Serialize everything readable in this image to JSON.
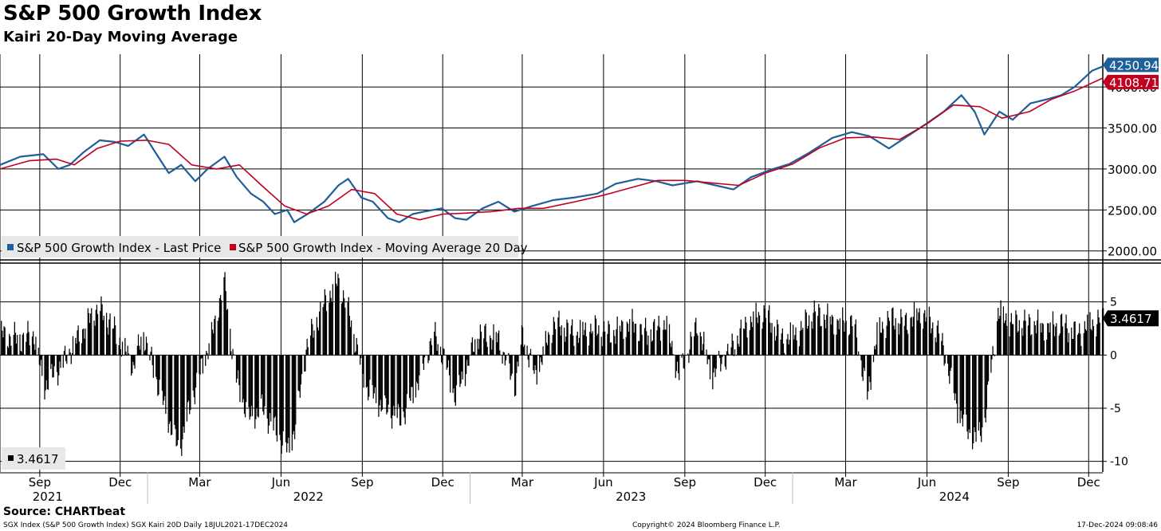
{
  "header": {
    "title": "S&P 500 Growth Index",
    "subtitle": "Kairi 20-Day Moving Average"
  },
  "footer": {
    "source": "Source: CHARTbeat",
    "left": "SGX Index (S&P 500 Growth Index) SGX Kairi 20D  Daily 18JUL2021-17DEC2024",
    "center": "Copyright© 2024 Bloomberg Finance L.P.",
    "right": "17-Dec-2024 09:08:46"
  },
  "colors": {
    "price": "#1f5f99",
    "moving_average": "#c0001f",
    "kairi_bars": "#000000",
    "grid": "#000000"
  },
  "chart_data": [
    {
      "type": "line",
      "panel": "price",
      "date_range": [
        "2021-07-18",
        "2024-12-17"
      ],
      "ylim": [
        1900,
        4400
      ],
      "yticks": [
        2000,
        2500,
        3000,
        3500,
        4000
      ],
      "ytick_labels": [
        "2000.00",
        "2500.00",
        "3000.00",
        "3500.00",
        "4000.00"
      ],
      "grid": true,
      "legend": {
        "placement": "bottom-left",
        "entries": [
          "S&P 500 Growth Index - Last Price",
          "S&P 500 Growth Index - Moving Average 20 Day"
        ]
      },
      "last_value_labels": [
        "4250.94",
        "4108.71"
      ],
      "series": [
        {
          "name": "S&P 500 Growth Index - Last Price",
          "color": "#1f5f99",
          "x": [
            "2021-07-18",
            "2021-08-10",
            "2021-09-05",
            "2021-09-22",
            "2021-10-05",
            "2021-10-20",
            "2021-11-08",
            "2021-11-25",
            "2021-12-10",
            "2021-12-28",
            "2022-01-10",
            "2022-01-25",
            "2022-02-08",
            "2022-02-24",
            "2022-03-10",
            "2022-03-29",
            "2022-04-12",
            "2022-04-28",
            "2022-05-12",
            "2022-05-25",
            "2022-06-08",
            "2022-06-16",
            "2022-07-01",
            "2022-07-20",
            "2022-08-05",
            "2022-08-16",
            "2022-08-31",
            "2022-09-13",
            "2022-09-30",
            "2022-10-13",
            "2022-10-28",
            "2022-11-10",
            "2022-11-30",
            "2022-12-15",
            "2022-12-28",
            "2023-01-15",
            "2023-02-02",
            "2023-02-20",
            "2023-03-13",
            "2023-04-05",
            "2023-04-28",
            "2023-05-25",
            "2023-06-15",
            "2023-07-10",
            "2023-07-31",
            "2023-08-18",
            "2023-09-15",
            "2023-10-26",
            "2023-11-15",
            "2023-12-10",
            "2023-12-28",
            "2024-01-20",
            "2024-02-15",
            "2024-03-08",
            "2024-03-28",
            "2024-04-19",
            "2024-05-10",
            "2024-05-31",
            "2024-06-20",
            "2024-07-10",
            "2024-07-25",
            "2024-08-05",
            "2024-08-22",
            "2024-09-06",
            "2024-09-26",
            "2024-10-15",
            "2024-10-31",
            "2024-11-15",
            "2024-12-05",
            "2024-12-17"
          ],
          "y": [
            3050,
            3150,
            3180,
            3000,
            3050,
            3200,
            3350,
            3330,
            3280,
            3420,
            3200,
            2950,
            3050,
            2850,
            3000,
            3150,
            2900,
            2700,
            2600,
            2450,
            2500,
            2350,
            2450,
            2600,
            2800,
            2880,
            2650,
            2600,
            2400,
            2350,
            2450,
            2480,
            2520,
            2400,
            2380,
            2520,
            2600,
            2480,
            2550,
            2620,
            2650,
            2700,
            2820,
            2880,
            2850,
            2800,
            2850,
            2750,
            2900,
            3000,
            3060,
            3200,
            3380,
            3450,
            3400,
            3250,
            3400,
            3550,
            3700,
            3900,
            3700,
            3420,
            3700,
            3600,
            3800,
            3850,
            3900,
            4000,
            4200,
            4251
          ]
        },
        {
          "name": "S&P 500 Growth Index - Moving Average 20 Day",
          "color": "#c0001f",
          "x": [
            "2021-07-18",
            "2021-08-20",
            "2021-09-20",
            "2021-10-10",
            "2021-11-05",
            "2021-12-01",
            "2021-12-31",
            "2022-01-25",
            "2022-02-20",
            "2022-03-20",
            "2022-04-15",
            "2022-05-10",
            "2022-06-05",
            "2022-06-30",
            "2022-07-25",
            "2022-08-20",
            "2022-09-15",
            "2022-10-10",
            "2022-11-05",
            "2022-12-01",
            "2022-12-25",
            "2023-01-25",
            "2023-02-25",
            "2023-03-25",
            "2023-04-30",
            "2023-06-01",
            "2023-07-05",
            "2023-08-01",
            "2023-09-01",
            "2023-10-01",
            "2023-11-01",
            "2023-12-01",
            "2024-01-01",
            "2024-02-01",
            "2024-03-01",
            "2024-04-01",
            "2024-05-01",
            "2024-06-01",
            "2024-07-01",
            "2024-07-31",
            "2024-08-25",
            "2024-09-25",
            "2024-10-20",
            "2024-11-15",
            "2024-12-17"
          ],
          "y": [
            3000,
            3100,
            3120,
            3050,
            3250,
            3340,
            3350,
            3300,
            3050,
            3000,
            3050,
            2800,
            2550,
            2450,
            2550,
            2750,
            2700,
            2450,
            2380,
            2450,
            2460,
            2480,
            2520,
            2520,
            2600,
            2680,
            2780,
            2860,
            2860,
            2830,
            2800,
            2950,
            3060,
            3260,
            3380,
            3390,
            3360,
            3550,
            3780,
            3760,
            3620,
            3700,
            3850,
            3950,
            4109
          ]
        }
      ]
    },
    {
      "type": "bar",
      "panel": "kairi",
      "series_name": "SGX Kairi 20D",
      "ylim": [
        -11,
        8.5
      ],
      "yticks": [
        5,
        0,
        -5,
        -10
      ],
      "ytick_labels": [
        "5",
        "0",
        "-5",
        "-10"
      ],
      "grid": true,
      "legend": {
        "placement": "bottom-left",
        "entries": [
          "3.4617"
        ]
      },
      "last_value_label": "3.4617",
      "anchors": {
        "x": [
          "2021-07-18",
          "2021-08-10",
          "2021-08-25",
          "2021-09-05",
          "2021-09-25",
          "2021-10-20",
          "2021-11-05",
          "2021-11-20",
          "2021-12-02",
          "2021-12-15",
          "2021-12-27",
          "2022-01-20",
          "2022-02-05",
          "2022-02-20",
          "2022-03-15",
          "2022-03-28",
          "2022-04-10",
          "2022-04-25",
          "2022-05-10",
          "2022-05-25",
          "2022-06-08",
          "2022-06-16",
          "2022-06-30",
          "2022-07-20",
          "2022-08-05",
          "2022-08-16",
          "2022-09-05",
          "2022-09-25",
          "2022-10-15",
          "2022-11-05",
          "2022-11-20",
          "2022-12-01",
          "2022-12-15",
          "2023-01-10",
          "2023-02-02",
          "2023-02-20",
          "2023-03-01",
          "2023-03-15",
          "2023-04-05",
          "2023-05-01",
          "2023-05-20",
          "2023-06-10",
          "2023-06-30",
          "2023-07-20",
          "2023-08-10",
          "2023-08-25",
          "2023-09-15",
          "2023-10-01",
          "2023-10-26",
          "2023-11-10",
          "2023-11-30",
          "2023-12-20",
          "2024-01-05",
          "2024-01-25",
          "2024-02-20",
          "2024-03-10",
          "2024-03-25",
          "2024-04-05",
          "2024-04-19",
          "2024-05-05",
          "2024-05-25",
          "2024-06-15",
          "2024-07-05",
          "2024-07-15",
          "2024-07-28",
          "2024-08-05",
          "2024-08-20",
          "2024-09-05",
          "2024-09-26",
          "2024-10-15",
          "2024-10-31",
          "2024-11-15",
          "2024-12-05",
          "2024-12-17"
        ],
        "y": [
          2,
          1.5,
          2,
          -3,
          -1,
          2.5,
          4.5,
          3,
          1,
          -1,
          2,
          -5,
          -9,
          -4,
          2,
          7,
          -2,
          -6,
          -5,
          -7,
          -9,
          -7,
          1,
          5,
          7,
          4,
          -3,
          -5,
          -6,
          -2,
          2,
          0,
          -4,
          2,
          1.5,
          -3,
          2,
          -2,
          3,
          2,
          2.5,
          2,
          3,
          2,
          3,
          -2,
          3,
          -2,
          1,
          3,
          4,
          1.5,
          2,
          4,
          3,
          3,
          -4,
          2,
          3.5,
          3,
          4,
          2,
          -5,
          -7,
          -8,
          -6,
          4,
          3,
          3,
          2.5,
          3,
          2,
          3,
          3.46
        ]
      }
    }
  ],
  "x_axis": {
    "months": [
      {
        "label": "Sep",
        "date": "2021-09-01"
      },
      {
        "label": "Dec",
        "date": "2021-12-01"
      },
      {
        "label": "Mar",
        "date": "2022-03-01"
      },
      {
        "label": "Jun",
        "date": "2022-06-01"
      },
      {
        "label": "Sep",
        "date": "2022-09-01"
      },
      {
        "label": "Dec",
        "date": "2022-12-01"
      },
      {
        "label": "Mar",
        "date": "2023-03-01"
      },
      {
        "label": "Jun",
        "date": "2023-06-01"
      },
      {
        "label": "Sep",
        "date": "2023-09-01"
      },
      {
        "label": "Dec",
        "date": "2023-12-01"
      },
      {
        "label": "Mar",
        "date": "2024-03-01"
      },
      {
        "label": "Jun",
        "date": "2024-06-01"
      },
      {
        "label": "Sep",
        "date": "2024-09-01"
      },
      {
        "label": "Dec",
        "date": "2024-12-01"
      }
    ],
    "years": [
      {
        "label": "2021",
        "center": "2021-09-10"
      },
      {
        "label": "2022",
        "center": "2022-07-02"
      },
      {
        "label": "2023",
        "center": "2023-07-02"
      },
      {
        "label": "2024",
        "center": "2024-07-02"
      }
    ],
    "year_boundaries": [
      "2022-01-01",
      "2023-01-01",
      "2024-01-01"
    ]
  }
}
